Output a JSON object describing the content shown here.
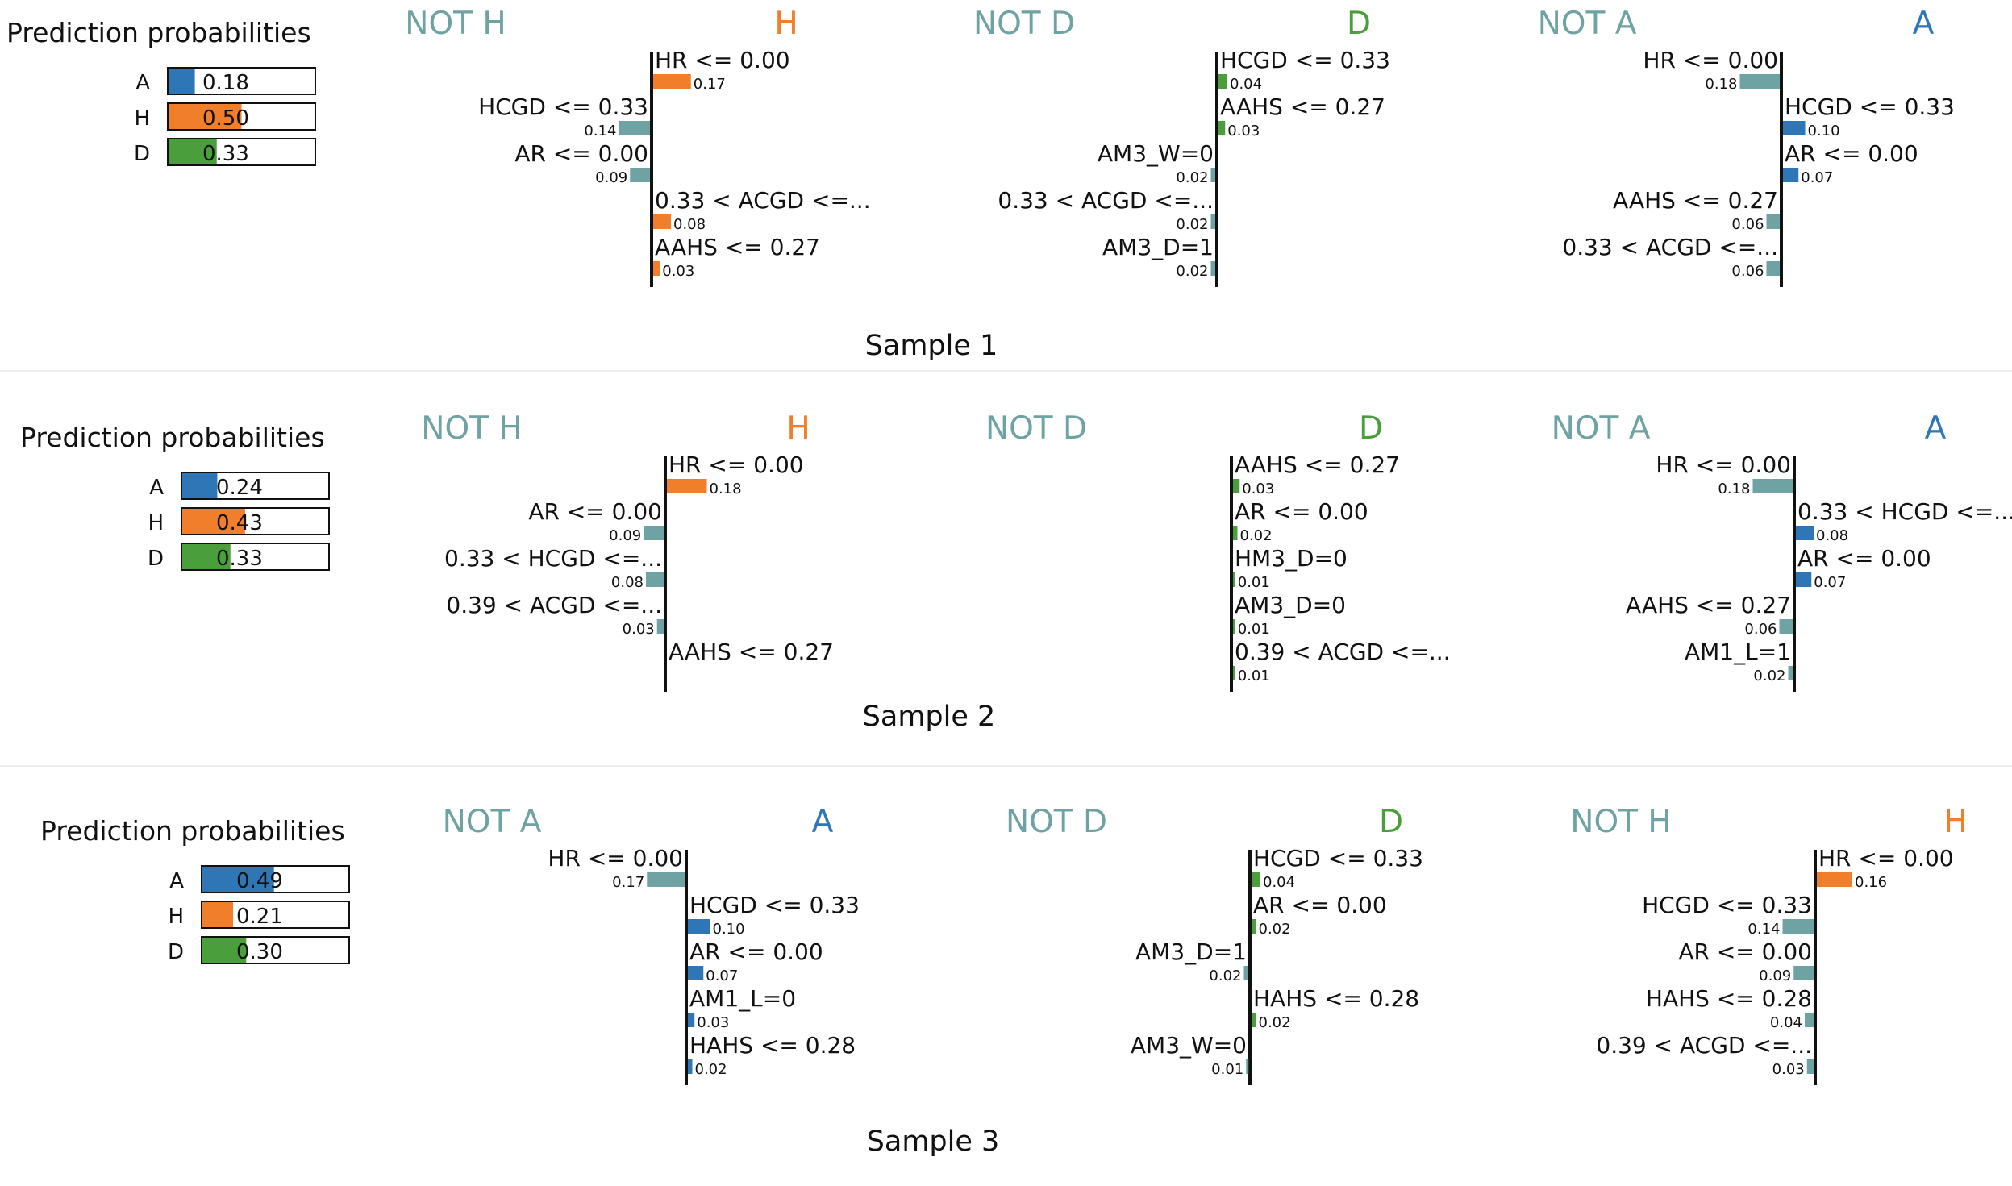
{
  "colors": {
    "A": "#2e76b5",
    "H": "#f07e2a",
    "D": "#4a9e3b",
    "not": "#6fa3a3"
  },
  "chart_data": [
    {
      "type": "lime_explanation",
      "caption": "Sample 1",
      "prediction_probabilities": {
        "title": "Prediction probabilities",
        "rows": [
          {
            "label": "A",
            "value": 0.18,
            "text": "0.18",
            "color_key": "A"
          },
          {
            "label": "H",
            "value": 0.5,
            "text": "0.50",
            "color_key": "H"
          },
          {
            "label": "D",
            "value": 0.33,
            "text": "0.33",
            "color_key": "D"
          }
        ]
      },
      "panels": [
        {
          "not_label": "NOT H",
          "label": "H",
          "color_key": "H",
          "features": [
            {
              "name": "HR <= 0.00",
              "weight": 0.17,
              "text": "0.17"
            },
            {
              "name": "HCGD <= 0.33",
              "weight": -0.14,
              "text": "0.14"
            },
            {
              "name": "AR <= 0.00",
              "weight": -0.09,
              "text": "0.09"
            },
            {
              "name": "0.33 < ACGD <=...",
              "weight": 0.08,
              "text": "0.08"
            },
            {
              "name": "AAHS <= 0.27",
              "weight": 0.03,
              "text": "0.03"
            }
          ]
        },
        {
          "not_label": "NOT D",
          "label": "D",
          "color_key": "D",
          "features": [
            {
              "name": "HCGD <= 0.33",
              "weight": 0.04,
              "text": "0.04"
            },
            {
              "name": "AAHS <= 0.27",
              "weight": 0.03,
              "text": "0.03"
            },
            {
              "name": "AM3_W=0",
              "weight": -0.02,
              "text": "0.02"
            },
            {
              "name": "0.33 < ACGD <=...",
              "weight": -0.02,
              "text": "0.02"
            },
            {
              "name": "AM3_D=1",
              "weight": -0.02,
              "text": "0.02"
            }
          ]
        },
        {
          "not_label": "NOT A",
          "label": "A",
          "color_key": "A",
          "features": [
            {
              "name": "HR <= 0.00",
              "weight": -0.18,
              "text": "0.18"
            },
            {
              "name": "HCGD <= 0.33",
              "weight": 0.1,
              "text": "0.10"
            },
            {
              "name": "AR <= 0.00",
              "weight": 0.07,
              "text": "0.07"
            },
            {
              "name": "AAHS <= 0.27",
              "weight": -0.06,
              "text": "0.06"
            },
            {
              "name": "0.33 < ACGD <=...",
              "weight": -0.06,
              "text": "0.06"
            }
          ]
        }
      ]
    },
    {
      "type": "lime_explanation",
      "caption": "Sample 2",
      "prediction_probabilities": {
        "title": "Prediction probabilities",
        "rows": [
          {
            "label": "A",
            "value": 0.24,
            "text": "0.24",
            "color_key": "A"
          },
          {
            "label": "H",
            "value": 0.43,
            "text": "0.43",
            "color_key": "H"
          },
          {
            "label": "D",
            "value": 0.33,
            "text": "0.33",
            "color_key": "D"
          }
        ]
      },
      "panels": [
        {
          "not_label": "NOT H",
          "label": "H",
          "color_key": "H",
          "features": [
            {
              "name": "HR <= 0.00",
              "weight": 0.18,
              "text": "0.18"
            },
            {
              "name": "AR <= 0.00",
              "weight": -0.09,
              "text": "0.09"
            },
            {
              "name": "0.33 < HCGD <=...",
              "weight": -0.08,
              "text": "0.08"
            },
            {
              "name": "0.39 < ACGD <=...",
              "weight": -0.03,
              "text": "0.03"
            },
            {
              "name": "AAHS <= 0.27",
              "weight": 0.0,
              "text": ""
            }
          ]
        },
        {
          "not_label": "NOT D",
          "label": "D",
          "color_key": "D",
          "features": [
            {
              "name": "AAHS <= 0.27",
              "weight": 0.03,
              "text": "0.03"
            },
            {
              "name": "AR <= 0.00",
              "weight": 0.02,
              "text": "0.02"
            },
            {
              "name": "HM3_D=0",
              "weight": 0.01,
              "text": "0.01"
            },
            {
              "name": "AM3_D=0",
              "weight": 0.01,
              "text": "0.01"
            },
            {
              "name": "0.39 < ACGD <=...",
              "weight": 0.01,
              "text": "0.01"
            }
          ]
        },
        {
          "not_label": "NOT A",
          "label": "A",
          "color_key": "A",
          "features": [
            {
              "name": "HR <= 0.00",
              "weight": -0.18,
              "text": "0.18"
            },
            {
              "name": "0.33 < HCGD <=...",
              "weight": 0.08,
              "text": "0.08"
            },
            {
              "name": "AR <= 0.00",
              "weight": 0.07,
              "text": "0.07"
            },
            {
              "name": "AAHS <= 0.27",
              "weight": -0.06,
              "text": "0.06"
            },
            {
              "name": "AM1_L=1",
              "weight": -0.02,
              "text": "0.02"
            }
          ]
        }
      ]
    },
    {
      "type": "lime_explanation",
      "caption": "Sample 3",
      "prediction_probabilities": {
        "title": "Prediction probabilities",
        "rows": [
          {
            "label": "A",
            "value": 0.49,
            "text": "0.49",
            "color_key": "A"
          },
          {
            "label": "H",
            "value": 0.21,
            "text": "0.21",
            "color_key": "H"
          },
          {
            "label": "D",
            "value": 0.3,
            "text": "0.30",
            "color_key": "D"
          }
        ]
      },
      "panels": [
        {
          "not_label": "NOT A",
          "label": "A",
          "color_key": "A",
          "features": [
            {
              "name": "HR <= 0.00",
              "weight": -0.17,
              "text": "0.17"
            },
            {
              "name": "HCGD <= 0.33",
              "weight": 0.1,
              "text": "0.10"
            },
            {
              "name": "AR <= 0.00",
              "weight": 0.07,
              "text": "0.07"
            },
            {
              "name": "AM1_L=0",
              "weight": 0.03,
              "text": "0.03"
            },
            {
              "name": "HAHS <= 0.28",
              "weight": 0.02,
              "text": "0.02"
            }
          ]
        },
        {
          "not_label": "NOT D",
          "label": "D",
          "color_key": "D",
          "features": [
            {
              "name": "HCGD <= 0.33",
              "weight": 0.04,
              "text": "0.04"
            },
            {
              "name": "AR <= 0.00",
              "weight": 0.02,
              "text": "0.02"
            },
            {
              "name": "AM3_D=1",
              "weight": -0.02,
              "text": "0.02"
            },
            {
              "name": "HAHS <= 0.28",
              "weight": 0.02,
              "text": "0.02"
            },
            {
              "name": "AM3_W=0",
              "weight": -0.01,
              "text": "0.01"
            }
          ]
        },
        {
          "not_label": "NOT H",
          "label": "H",
          "color_key": "H",
          "features": [
            {
              "name": "HR <= 0.00",
              "weight": 0.16,
              "text": "0.16"
            },
            {
              "name": "HCGD <= 0.33",
              "weight": -0.14,
              "text": "0.14"
            },
            {
              "name": "AR <= 0.00",
              "weight": -0.09,
              "text": "0.09"
            },
            {
              "name": "HAHS <= 0.28",
              "weight": -0.04,
              "text": "0.04"
            },
            {
              "name": "0.39 < ACGD <=...",
              "weight": -0.03,
              "text": "0.03"
            }
          ]
        }
      ]
    }
  ]
}
